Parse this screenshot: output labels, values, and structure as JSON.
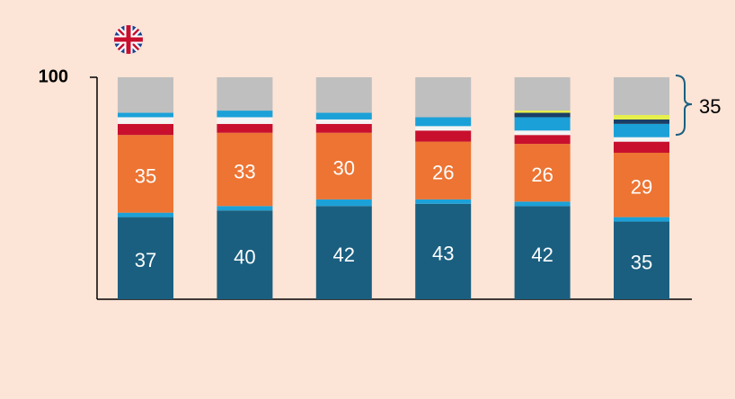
{
  "chart_data": {
    "type": "stacked_bar",
    "categories": [
      null,
      null,
      null,
      null,
      null,
      null
    ],
    "ylim": [
      0,
      100
    ],
    "yticks": [
      100
    ],
    "annotation": "35",
    "series": [
      {
        "color": "#1a5f80",
        "values": [
          37,
          40,
          42,
          43,
          42,
          35
        ],
        "labels": true
      },
      {
        "color": "#1ba1d8",
        "values": [
          2,
          2,
          3,
          2,
          2,
          2
        ]
      },
      {
        "color": "#ed7433",
        "values": [
          35,
          33,
          30,
          26,
          26,
          29
        ],
        "labels": true
      },
      {
        "color": "#c8102e",
        "values": [
          5,
          4,
          4,
          5,
          4,
          5
        ]
      },
      {
        "color": "#f4f4f4",
        "values": [
          3,
          3,
          2,
          2,
          2,
          2
        ]
      },
      {
        "color": "#1ba1d8",
        "values": [
          2,
          3,
          3,
          4,
          6,
          6
        ]
      },
      {
        "color": "#1c3f66",
        "values": [
          0,
          0,
          0,
          0,
          2,
          2
        ]
      },
      {
        "color": "#e6f04a",
        "values": [
          0,
          0,
          0,
          0,
          1,
          2
        ]
      },
      {
        "color": "#bfbfbf",
        "values": [
          16,
          15,
          16,
          18,
          15,
          17
        ]
      }
    ]
  }
}
